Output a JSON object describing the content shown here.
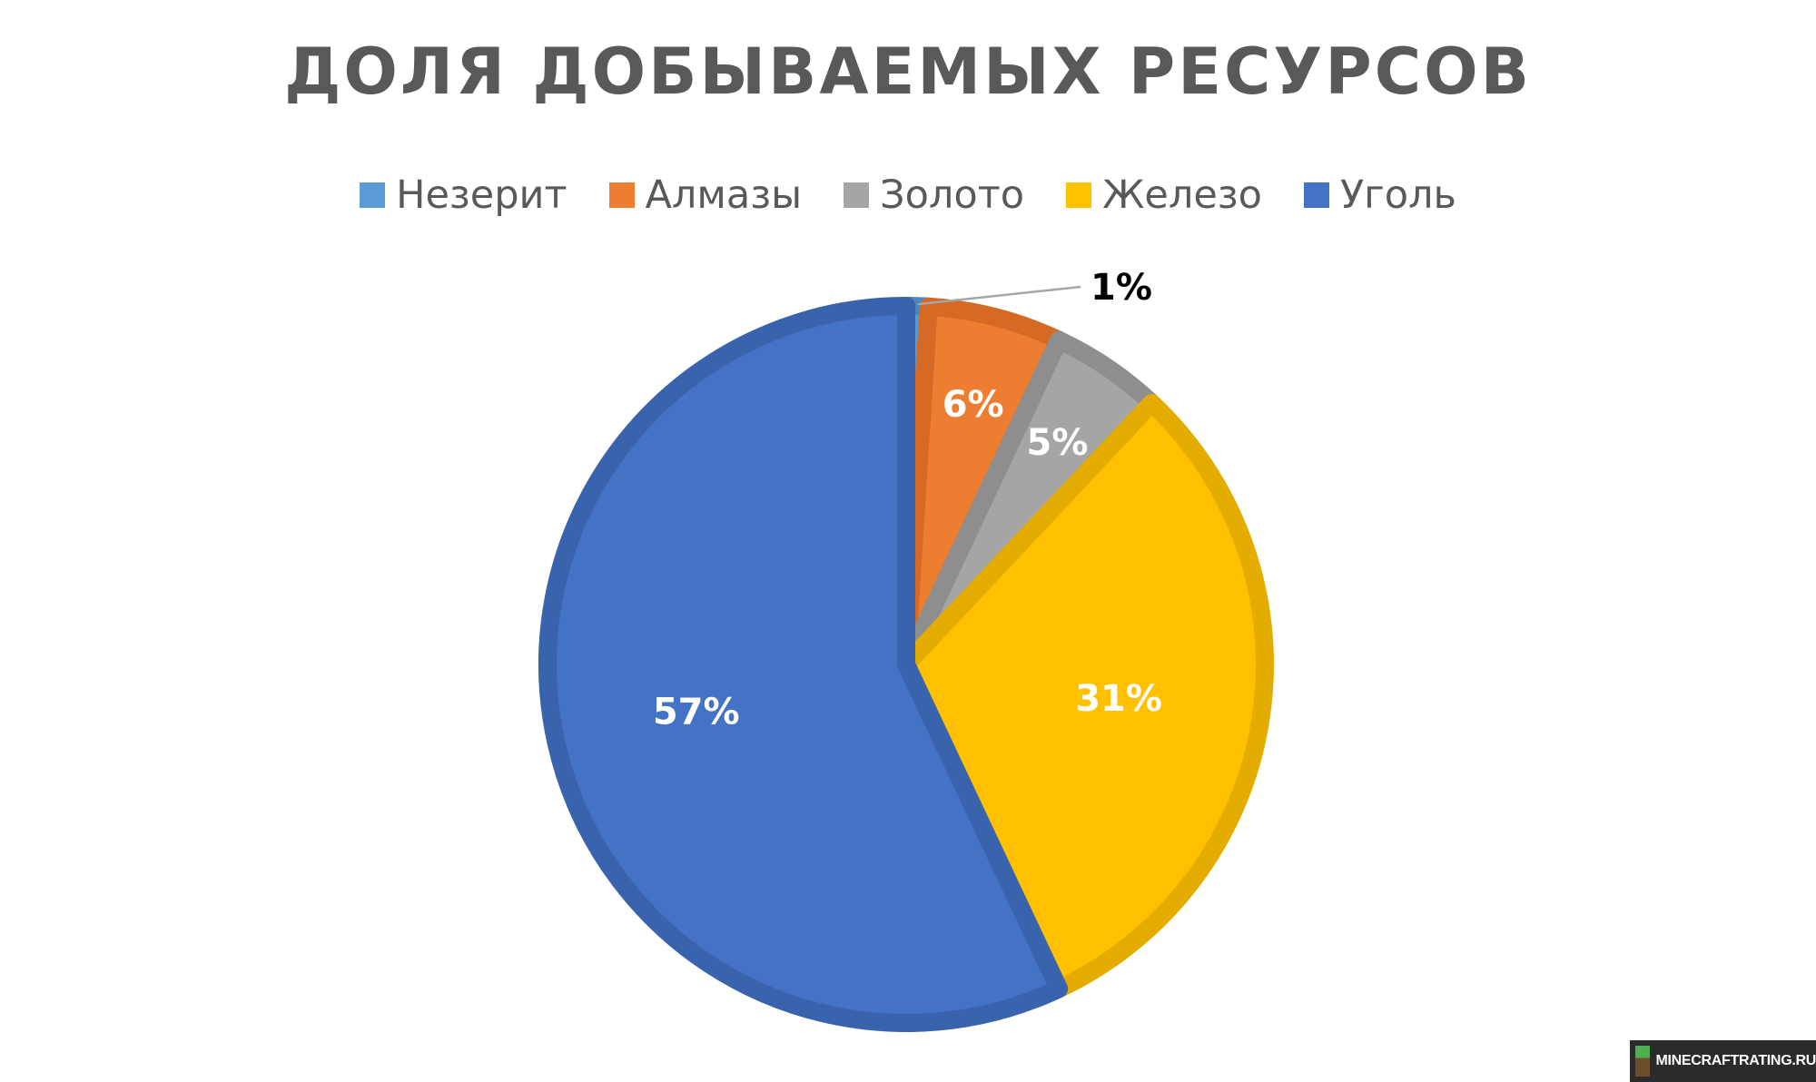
{
  "chart_data": {
    "type": "pie",
    "title": "ДОЛЯ ДОБЫВАЕМЫХ РЕСУРСОВ",
    "legend_position": "top",
    "slices": [
      {
        "name": "Незерит",
        "value": 1,
        "label": "1%",
        "color": "#5b9bd5",
        "edge": "#4a86c0",
        "label_color": "#000000"
      },
      {
        "name": "Алмазы",
        "value": 6,
        "label": "6%",
        "color": "#ed7d31",
        "edge": "#d66a24",
        "label_color": "#ffffff"
      },
      {
        "name": "Золото",
        "value": 5,
        "label": "5%",
        "color": "#a5a5a5",
        "edge": "#8e8e8e",
        "label_color": "#ffffff"
      },
      {
        "name": "Железо",
        "value": 31,
        "label": "31%",
        "color": "#ffc000",
        "edge": "#e5ac00",
        "label_color": "#ffffff"
      },
      {
        "name": "Уголь",
        "value": 57,
        "label": "57%",
        "color": "#4472c4",
        "edge": "#3a63ad",
        "label_color": "#ffffff"
      }
    ]
  },
  "watermark": {
    "text": "MINECRAFTRATING.RU"
  }
}
